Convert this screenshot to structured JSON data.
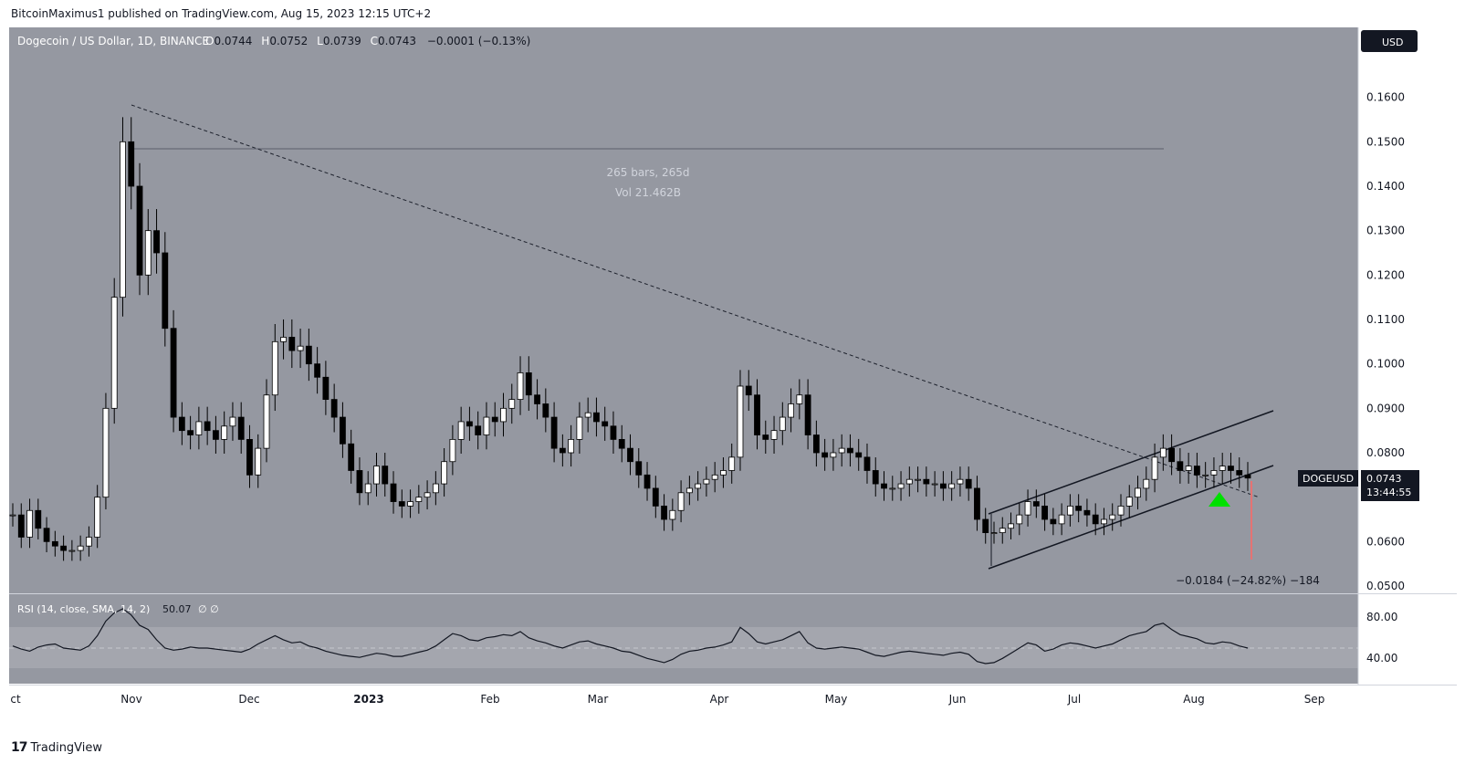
{
  "header": {
    "published": "BitcoinMaximus1 published on TradingView.com, Aug 15, 2023 12:15 UTC+2"
  },
  "chart_data": {
    "type": "candlestick",
    "symbol_title": "Dogecoin / US Dollar, 1D, BINANCE",
    "ohlc": {
      "o_label": "O",
      "o": "0.0744",
      "h_label": "H",
      "h": "0.0752",
      "l_label": "L",
      "l": "0.0739",
      "c_label": "C",
      "c": "0.0743",
      "change": "−0.0001 (−0.13%)"
    },
    "currency_button": "USD",
    "y_ticks": [
      "0.1600",
      "0.1500",
      "0.1400",
      "0.1300",
      "0.1200",
      "0.1100",
      "0.1000",
      "0.0900",
      "0.0800",
      "0.0600",
      "0.0500"
    ],
    "ylim": [
      0.05,
      0.17
    ],
    "x_ticks": [
      "ct",
      "Nov",
      "Dec",
      "2023",
      "Feb",
      "Mar",
      "Apr",
      "May",
      "Jun",
      "Jul",
      "Aug",
      "Sep"
    ],
    "price_label": {
      "symbol": "DOGEUSD",
      "price": "0.0743",
      "countdown": "13:44:55"
    },
    "annotations": {
      "bars_range": "265 bars, 265d",
      "volume_range": "Vol 21.462B",
      "measure": "−0.0184 (−24.82%) −184"
    },
    "candles_close": [
      0.066,
      0.061,
      0.067,
      0.063,
      0.06,
      0.059,
      0.058,
      0.058,
      0.059,
      0.061,
      0.07,
      0.09,
      0.115,
      0.15,
      0.14,
      0.12,
      0.13,
      0.125,
      0.108,
      0.088,
      0.085,
      0.084,
      0.087,
      0.085,
      0.083,
      0.086,
      0.088,
      0.083,
      0.075,
      0.081,
      0.093,
      0.105,
      0.106,
      0.103,
      0.104,
      0.1,
      0.097,
      0.092,
      0.088,
      0.082,
      0.076,
      0.071,
      0.073,
      0.077,
      0.073,
      0.069,
      0.068,
      0.069,
      0.07,
      0.071,
      0.073,
      0.078,
      0.083,
      0.087,
      0.086,
      0.084,
      0.088,
      0.087,
      0.09,
      0.092,
      0.098,
      0.093,
      0.091,
      0.088,
      0.081,
      0.08,
      0.083,
      0.088,
      0.089,
      0.087,
      0.086,
      0.083,
      0.081,
      0.078,
      0.075,
      0.072,
      0.068,
      0.065,
      0.067,
      0.071,
      0.072,
      0.073,
      0.074,
      0.075,
      0.076,
      0.079,
      0.095,
      0.093,
      0.084,
      0.083,
      0.085,
      0.088,
      0.091,
      0.093,
      0.084,
      0.08,
      0.079,
      0.08,
      0.081,
      0.08,
      0.079,
      0.076,
      0.073,
      0.072,
      0.072,
      0.073,
      0.074,
      0.074,
      0.073,
      0.073,
      0.072,
      0.073,
      0.074,
      0.072,
      0.065,
      0.062,
      0.062,
      0.063,
      0.064,
      0.066,
      0.069,
      0.068,
      0.065,
      0.064,
      0.066,
      0.068,
      0.067,
      0.066,
      0.064,
      0.065,
      0.066,
      0.068,
      0.07,
      0.072,
      0.074,
      0.079,
      0.081,
      0.078,
      0.076,
      0.077,
      0.075,
      0.075,
      0.076,
      0.077,
      0.076,
      0.075,
      0.0743
    ],
    "rsi": {
      "label": "RSI (14, close, SMA, 14, 2)",
      "value": "50.07",
      "extra": "∅ ∅",
      "ticks": [
        "80.00",
        "40.00"
      ],
      "values": [
        52,
        49,
        47,
        51,
        53,
        54,
        50,
        49,
        48,
        52,
        62,
        76,
        84,
        88,
        82,
        72,
        68,
        58,
        50,
        48,
        49,
        51,
        50,
        50,
        49,
        48,
        47,
        46,
        49,
        54,
        58,
        62,
        58,
        55,
        56,
        52,
        50,
        47,
        45,
        43,
        42,
        41,
        43,
        45,
        44,
        42,
        42,
        44,
        46,
        48,
        52,
        58,
        64,
        62,
        58,
        57,
        60,
        61,
        63,
        62,
        66,
        60,
        57,
        55,
        52,
        50,
        53,
        56,
        57,
        54,
        52,
        50,
        47,
        46,
        43,
        40,
        38,
        36,
        39,
        44,
        47,
        48,
        50,
        51,
        53,
        56,
        70,
        64,
        56,
        54,
        56,
        58,
        62,
        66,
        55,
        50,
        49,
        50,
        51,
        50,
        49,
        46,
        43,
        42,
        44,
        46,
        47,
        46,
        45,
        44,
        43,
        45,
        46,
        44,
        37,
        35,
        36,
        40,
        45,
        50,
        55,
        53,
        47,
        49,
        53,
        55,
        54,
        52,
        50,
        52,
        54,
        58,
        62,
        64,
        66,
        72,
        74,
        68,
        63,
        61,
        59,
        55,
        54,
        56,
        55,
        52,
        50
      ]
    }
  },
  "footer": {
    "logo_icon": "tradingview-logo-icon",
    "brand": "TradingView"
  }
}
